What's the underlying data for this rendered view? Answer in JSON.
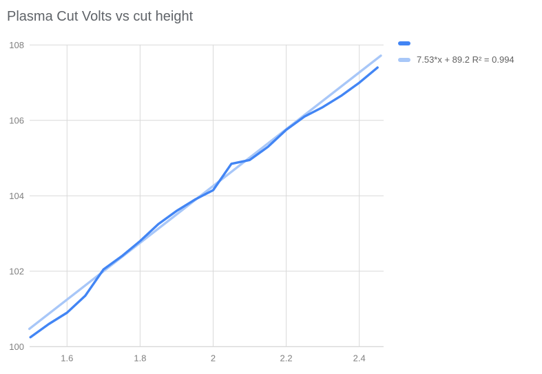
{
  "title": "Plasma Cut Volts vs cut height",
  "colors": {
    "series": "#4285F4",
    "trendline": "#A8C7F8",
    "gridline": "#d9d9d9",
    "baseline": "#cccccc",
    "tick_label": "#808080",
    "title_text": "#5f6368"
  },
  "legend": {
    "series_label": "",
    "trendline_label": "7.53*x + 89.2 R² = 0.994"
  },
  "chart_data": {
    "type": "line",
    "title": "Plasma Cut Volts vs cut height",
    "xlabel": "",
    "ylabel": "",
    "x": [
      1.5,
      1.55,
      1.6,
      1.65,
      1.7,
      1.75,
      1.8,
      1.85,
      1.9,
      1.95,
      2.0,
      2.05,
      2.1,
      2.15,
      2.2,
      2.25,
      2.3,
      2.35,
      2.4,
      2.45
    ],
    "series": [
      {
        "name": "",
        "values": [
          100.25,
          100.6,
          100.9,
          101.35,
          102.05,
          102.4,
          102.8,
          103.25,
          103.6,
          103.9,
          104.15,
          104.85,
          104.95,
          105.3,
          105.75,
          106.1,
          106.35,
          106.65,
          107.0,
          107.4
        ]
      }
    ],
    "trendline": {
      "slope": 7.53,
      "intercept": 89.2,
      "r_squared": 0.994,
      "label": "7.53*x + 89.2 R² = 0.994",
      "x_range": [
        1.497,
        2.459
      ]
    },
    "xlim": [
      1.497,
      2.466
    ],
    "ylim": [
      100,
      108
    ],
    "x_ticks": [
      1.6,
      1.8,
      2,
      2.2,
      2.4
    ],
    "x_tick_labels": [
      "1.6",
      "1.8",
      "2",
      "2.2",
      "2.4"
    ],
    "y_ticks": [
      100,
      102,
      104,
      106,
      108
    ],
    "y_tick_labels": [
      "100",
      "102",
      "104",
      "106",
      "108"
    ],
    "grid": true,
    "legend_position": "top-right"
  }
}
